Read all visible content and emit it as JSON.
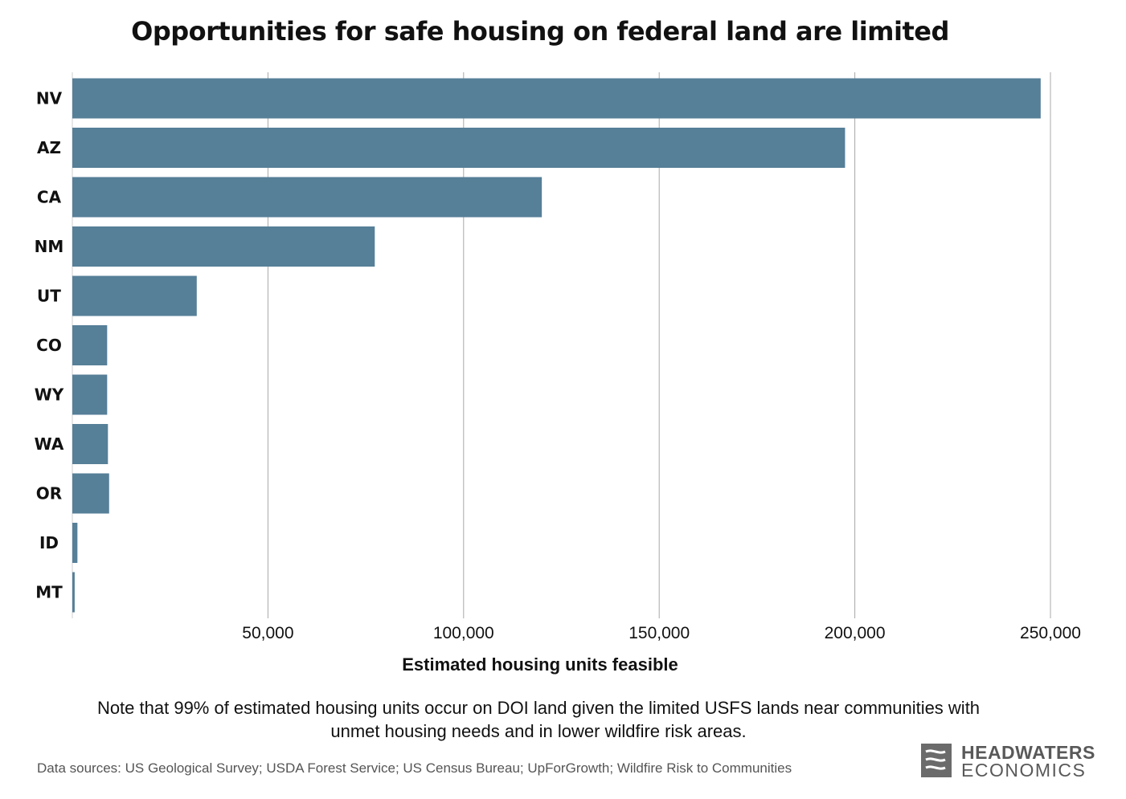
{
  "title": "Opportunities for safe housing on federal land are limited",
  "chart_data": {
    "type": "bar",
    "orientation": "horizontal",
    "categories": [
      "NV",
      "AZ",
      "CA",
      "NM",
      "UT",
      "CO",
      "WY",
      "WA",
      "OR",
      "ID",
      "MT"
    ],
    "values": [
      247500,
      197500,
      120000,
      77300,
      31800,
      8900,
      8900,
      9100,
      9400,
      1300,
      600
    ],
    "xlabel": "Estimated housing units feasible",
    "xticks": [
      50000,
      100000,
      150000,
      200000,
      250000
    ],
    "xtick_labels": [
      "50,000",
      "100,000",
      "150,000",
      "200,000",
      "250,000"
    ],
    "xlim": [
      0,
      250000
    ],
    "grid": "vertical",
    "bar_color": "#567f98"
  },
  "note": "Note that 99% of estimated housing units occur on DOI land given the limited USFS lands near communities with unmet housing needs and in lower wildfire risk areas.",
  "source": "Data sources: US Geological Survey; USDA Forest Service; US Census Bureau; UpForGrowth; Wildfire Risk to Communities",
  "logo": {
    "line1": "HEADWATERS",
    "line2": "ECONOMICS"
  }
}
